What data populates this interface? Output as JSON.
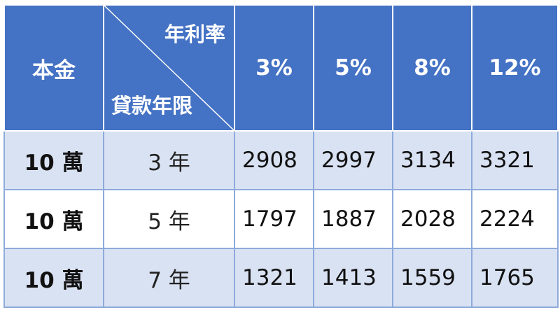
{
  "table": {
    "header": {
      "principal_label": "本金",
      "corner_top_label": "年利率",
      "corner_bottom_label": "貸款年限",
      "rates": [
        "3%",
        "5%",
        "8%",
        "12%"
      ]
    },
    "rows": [
      {
        "principal": "10 萬",
        "term": "3 年",
        "values": [
          "2908",
          "2997",
          "3134",
          "3321"
        ]
      },
      {
        "principal": "10 萬",
        "term": "5 年",
        "values": [
          "1797",
          "1887",
          "2028",
          "2224"
        ]
      },
      {
        "principal": "10 萬",
        "term": "7 年",
        "values": [
          "1321",
          "1413",
          "1559",
          "1765"
        ]
      }
    ]
  },
  "colors": {
    "header_bg": "#4472c4",
    "band_bg": "#d9e2f3",
    "plain_bg": "#ffffff"
  }
}
